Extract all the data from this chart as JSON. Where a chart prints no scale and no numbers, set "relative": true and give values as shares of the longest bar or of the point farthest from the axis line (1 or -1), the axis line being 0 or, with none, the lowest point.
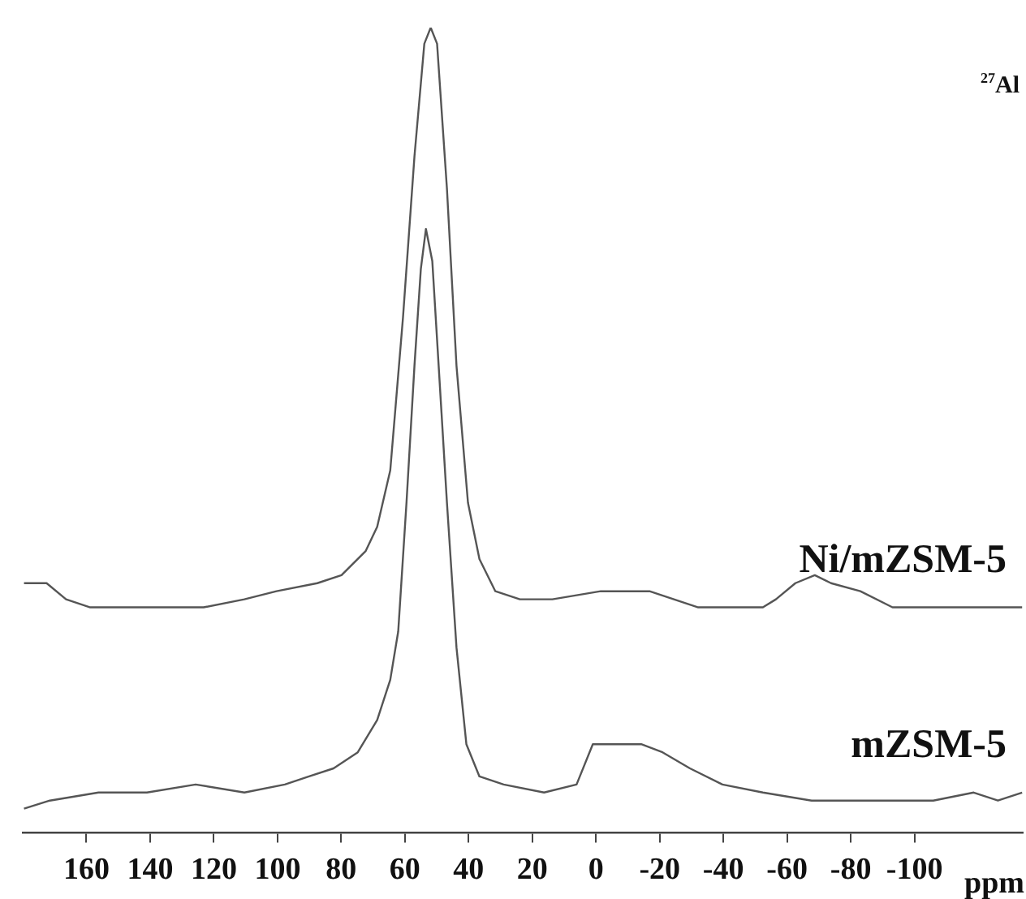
{
  "chart_data": {
    "type": "line",
    "relative": true,
    "xlabel": "ppm",
    "annotations": [
      "$^{27}$Al"
    ],
    "grid": false,
    "legend": false,
    "marker": "none",
    "line_style": "solid",
    "xlim": [
      180,
      -134
    ],
    "xticks": [
      160,
      140,
      120,
      100,
      80,
      60,
      40,
      20,
      0,
      -20,
      -40,
      -60,
      -80,
      -100
    ],
    "series": [
      {
        "name": "Ni/mZSM-5",
        "color": "#555555",
        "x": [
          179.6,
          172.5,
          166.4,
          158.8,
          148.6,
          135.9,
          123.2,
          110.4,
          100.3,
          87.5,
          79.9,
          72.3,
          68.7,
          64.6,
          60.6,
          57.0,
          53.9,
          51.9,
          49.9,
          46.8,
          43.8,
          40.2,
          36.6,
          31.6,
          23.9,
          13.7,
          -1.5,
          -16.8,
          -32.1,
          -42.2,
          -52.4,
          -56.5,
          -62.6,
          -68.7,
          -73.8,
          -83.0,
          -93.1,
          -103.3,
          -118.6,
          -133.8
        ],
        "values": [
          0.31,
          0.31,
          0.29,
          0.28,
          0.28,
          0.28,
          0.28,
          0.29,
          0.3,
          0.31,
          0.32,
          0.35,
          0.38,
          0.45,
          0.64,
          0.84,
          0.98,
          1,
          0.98,
          0.8,
          0.58,
          0.41,
          0.34,
          0.3,
          0.29,
          0.29,
          0.3,
          0.3,
          0.28,
          0.28,
          0.28,
          0.29,
          0.31,
          0.32,
          0.31,
          0.3,
          0.28,
          0.28,
          0.28,
          0.28
        ]
      },
      {
        "name": "mZSM-5",
        "color": "#555555",
        "x": [
          179.6,
          171.5,
          156.2,
          141.0,
          125.7,
          110.4,
          97.7,
          90.1,
          82.4,
          74.8,
          68.7,
          64.6,
          62.1,
          59.5,
          57.0,
          55.0,
          53.4,
          51.4,
          49.4,
          46.8,
          43.8,
          40.7,
          36.6,
          29.0,
          16.3,
          6.1,
          1.0,
          -6.6,
          -14.2,
          -20.9,
          -29.5,
          -39.7,
          -52.4,
          -67.7,
          -83.0,
          -98.2,
          -105.9,
          -118.6,
          -126.2,
          -133.8
        ],
        "values": [
          0.03,
          0.04,
          0.05,
          0.05,
          0.06,
          0.05,
          0.06,
          0.07,
          0.08,
          0.1,
          0.14,
          0.19,
          0.25,
          0.41,
          0.58,
          0.7,
          0.75,
          0.71,
          0.58,
          0.41,
          0.23,
          0.11,
          0.07,
          0.06,
          0.05,
          0.06,
          0.11,
          0.11,
          0.11,
          0.1,
          0.08,
          0.06,
          0.05,
          0.04,
          0.04,
          0.04,
          0.04,
          0.05,
          0.04,
          0.05
        ]
      }
    ]
  }
}
